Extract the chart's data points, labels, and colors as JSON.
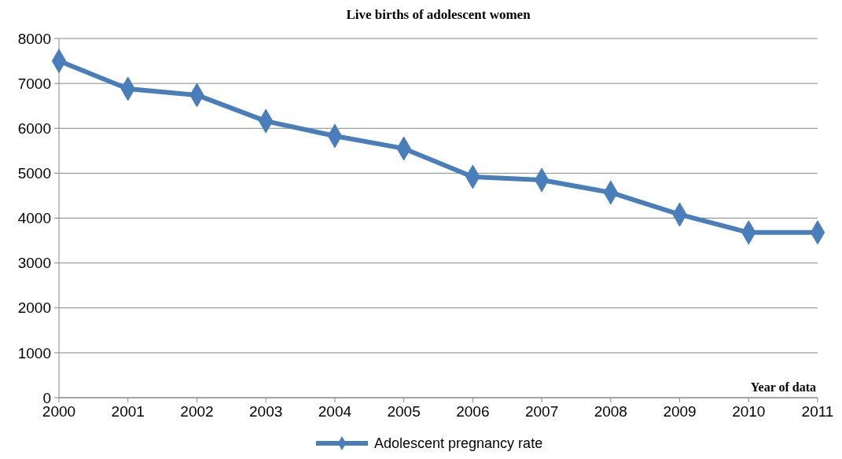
{
  "chart_data": {
    "type": "line",
    "title": "Live births of adolescent women",
    "xlabel": "Year of data",
    "x": [
      2000,
      2001,
      2002,
      2003,
      2004,
      2005,
      2006,
      2007,
      2008,
      2009,
      2010,
      2011
    ],
    "series": [
      {
        "name": "Adolescent pregnancy rate",
        "color": "#4a7ebb",
        "values": [
          7500,
          6880,
          6740,
          6160,
          5830,
          5550,
          4920,
          4850,
          4570,
          4080,
          3680,
          3680
        ]
      }
    ],
    "xlim": [
      2000,
      2011
    ],
    "xticks": [
      2000,
      2001,
      2002,
      2003,
      2004,
      2005,
      2006,
      2007,
      2008,
      2009,
      2010,
      2011
    ],
    "ylim": [
      0,
      8000
    ],
    "yticks": [
      0,
      1000,
      2000,
      3000,
      4000,
      5000,
      6000,
      7000,
      8000
    ],
    "grid": "y",
    "legend": "bottom",
    "marker": "diamond",
    "line_style": "solid"
  }
}
